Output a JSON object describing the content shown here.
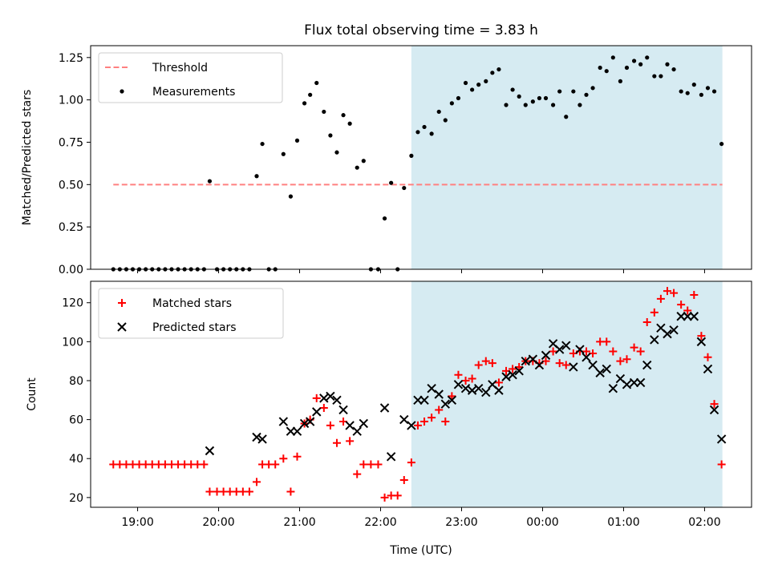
{
  "title": "Flux total observing time = 3.83 h",
  "colors": {
    "threshold": "#ff8080",
    "matched": "#ff0000",
    "predicted": "#000000",
    "shade": "#add8e6"
  },
  "chart_data": [
    {
      "type": "scatter",
      "ylabel": "Matched/Predicted stars",
      "xlim_hours": [
        18.42,
        26.58
      ],
      "ylim": [
        0.0,
        1.32
      ],
      "yticks": [
        "0.00",
        "0.25",
        "0.50",
        "0.75",
        "1.00",
        "1.25"
      ],
      "ytick_values": [
        0,
        0.25,
        0.5,
        0.75,
        1.0,
        1.25
      ],
      "shaded_span_hours": [
        22.38,
        26.22
      ],
      "legend": {
        "placement": "top-left",
        "entries": [
          "Threshold",
          "Measurements"
        ]
      },
      "threshold": {
        "name": "Threshold",
        "y": 0.5,
        "x_range_hours": [
          18.7,
          26.22
        ]
      },
      "series": [
        {
          "name": "Measurements",
          "x_hours": [
            18.7,
            18.78,
            18.86,
            18.94,
            19.02,
            19.1,
            19.18,
            19.26,
            19.34,
            19.42,
            19.5,
            19.58,
            19.66,
            19.74,
            19.82,
            19.89,
            19.98,
            20.06,
            20.14,
            20.22,
            20.3,
            20.38,
            20.47,
            20.54,
            20.62,
            20.7,
            20.8,
            20.89,
            20.97,
            21.06,
            21.13,
            21.21,
            21.3,
            21.38,
            21.46,
            21.54,
            21.62,
            21.71,
            21.79,
            21.88,
            21.97,
            22.05,
            22.13,
            22.21,
            22.29,
            22.38,
            22.46,
            22.54,
            22.63,
            22.72,
            22.8,
            22.88,
            22.96,
            23.05,
            23.13,
            23.21,
            23.3,
            23.38,
            23.46,
            23.55,
            23.63,
            23.71,
            23.79,
            23.88,
            23.96,
            24.04,
            24.13,
            24.21,
            24.29,
            24.38,
            24.46,
            24.54,
            24.62,
            24.71,
            24.79,
            24.87,
            24.96,
            25.04,
            25.13,
            25.21,
            25.29,
            25.38,
            25.46,
            25.54,
            25.62,
            25.71,
            25.79,
            25.87,
            25.96,
            26.04,
            26.12,
            26.21
          ],
          "y": [
            0.0,
            0.0,
            0.0,
            0.0,
            0.0,
            0.0,
            0.0,
            0.0,
            0.0,
            0.0,
            0.0,
            0.0,
            0.0,
            0.0,
            0.0,
            0.52,
            0.0,
            0.0,
            0.0,
            0.0,
            0.0,
            0.0,
            0.55,
            0.74,
            0.0,
            0.0,
            0.68,
            0.43,
            0.76,
            0.98,
            1.03,
            1.1,
            0.93,
            0.79,
            0.69,
            0.91,
            0.86,
            0.6,
            0.64,
            0.0,
            0.0,
            0.3,
            0.51,
            0.0,
            0.48,
            0.67,
            0.81,
            0.84,
            0.8,
            0.93,
            0.88,
            0.98,
            1.01,
            1.1,
            1.06,
            1.09,
            1.11,
            1.16,
            1.18,
            0.97,
            1.06,
            1.02,
            0.97,
            0.99,
            1.01,
            1.01,
            0.97,
            1.05,
            0.9,
            1.05,
            0.97,
            1.03,
            1.07,
            1.19,
            1.17,
            1.25,
            1.11,
            1.19,
            1.23,
            1.21,
            1.25,
            1.14,
            1.14,
            1.21,
            1.18,
            1.05,
            1.04,
            1.09,
            1.03,
            1.07,
            1.05,
            0.74
          ]
        }
      ]
    },
    {
      "type": "scatter",
      "xlabel": "Time (UTC)",
      "ylabel": "Count",
      "xlim_hours": [
        18.42,
        26.58
      ],
      "ylim": [
        15,
        131
      ],
      "yticks": [
        "20",
        "40",
        "60",
        "80",
        "100",
        "120"
      ],
      "ytick_values": [
        20,
        40,
        60,
        80,
        100,
        120
      ],
      "xticks": [
        "19:00",
        "20:00",
        "21:00",
        "22:00",
        "23:00",
        "00:00",
        "01:00",
        "02:00"
      ],
      "xtick_hours": [
        19,
        20,
        21,
        22,
        23,
        24,
        25,
        26
      ],
      "shaded_span_hours": [
        22.38,
        26.22
      ],
      "legend": {
        "placement": "top-left",
        "entries": [
          "Matched stars",
          "Predicted stars"
        ]
      },
      "series": [
        {
          "name": "Matched stars",
          "marker": "plus",
          "x_hours": [
            18.7,
            18.78,
            18.86,
            18.94,
            19.02,
            19.1,
            19.18,
            19.26,
            19.34,
            19.42,
            19.5,
            19.58,
            19.66,
            19.74,
            19.82,
            19.89,
            19.98,
            20.06,
            20.14,
            20.22,
            20.3,
            20.38,
            20.47,
            20.54,
            20.62,
            20.7,
            20.8,
            20.89,
            20.97,
            21.06,
            21.13,
            21.21,
            21.3,
            21.38,
            21.46,
            21.54,
            21.62,
            21.71,
            21.79,
            21.88,
            21.97,
            22.05,
            22.13,
            22.21,
            22.29,
            22.38,
            22.46,
            22.54,
            22.63,
            22.72,
            22.8,
            22.88,
            22.96,
            23.05,
            23.13,
            23.21,
            23.3,
            23.38,
            23.46,
            23.55,
            23.63,
            23.71,
            23.79,
            23.88,
            23.96,
            24.04,
            24.13,
            24.21,
            24.29,
            24.38,
            24.46,
            24.54,
            24.62,
            24.71,
            24.79,
            24.87,
            24.96,
            25.04,
            25.13,
            25.21,
            25.29,
            25.38,
            25.46,
            25.54,
            25.62,
            25.71,
            25.79,
            25.87,
            25.96,
            26.04,
            26.12,
            26.21
          ],
          "y": [
            37,
            37,
            37,
            37,
            37,
            37,
            37,
            37,
            37,
            37,
            37,
            37,
            37,
            37,
            37,
            23,
            23,
            23,
            23,
            23,
            23,
            23,
            28,
            37,
            37,
            37,
            40,
            23,
            41,
            58,
            60,
            71,
            66,
            57,
            48,
            59,
            49,
            32,
            37,
            37,
            37,
            20,
            21,
            21,
            29,
            38,
            57,
            59,
            61,
            65,
            59,
            72,
            83,
            80,
            81,
            88,
            90,
            89,
            79,
            85,
            86,
            87,
            90,
            90,
            89,
            90,
            95,
            89,
            88,
            94,
            95,
            95,
            94,
            100,
            100,
            95,
            90,
            91,
            97,
            95,
            110,
            115,
            122,
            126,
            125,
            119,
            116,
            124,
            103,
            92,
            68,
            37
          ]
        },
        {
          "name": "Predicted stars",
          "marker": "x",
          "x_hours": [
            19.89,
            20.47,
            20.54,
            20.8,
            20.89,
            20.97,
            21.06,
            21.13,
            21.21,
            21.3,
            21.38,
            21.46,
            21.54,
            21.62,
            21.71,
            21.79,
            22.05,
            22.13,
            22.29,
            22.38,
            22.46,
            22.54,
            22.63,
            22.72,
            22.8,
            22.88,
            22.96,
            23.05,
            23.13,
            23.21,
            23.3,
            23.38,
            23.46,
            23.55,
            23.63,
            23.71,
            23.79,
            23.88,
            23.96,
            24.04,
            24.13,
            24.21,
            24.29,
            24.38,
            24.46,
            24.54,
            24.62,
            24.71,
            24.79,
            24.87,
            24.96,
            25.04,
            25.13,
            25.21,
            25.29,
            25.38,
            25.46,
            25.54,
            25.62,
            25.71,
            25.79,
            25.87,
            25.96,
            26.04,
            26.12,
            26.21
          ],
          "y": [
            44,
            51,
            50,
            59,
            54,
            54,
            58,
            59,
            64,
            71,
            72,
            70,
            65,
            57,
            54,
            58,
            66,
            41,
            60,
            57,
            70,
            70,
            76,
            73,
            68,
            70,
            78,
            76,
            75,
            76,
            74,
            78,
            75,
            82,
            83,
            85,
            90,
            91,
            88,
            93,
            99,
            96,
            98,
            87,
            96,
            92,
            88,
            84,
            86,
            76,
            81,
            78,
            79,
            79,
            88,
            101,
            107,
            104,
            106,
            113,
            113,
            113,
            100,
            86,
            65,
            50
          ]
        }
      ]
    }
  ]
}
